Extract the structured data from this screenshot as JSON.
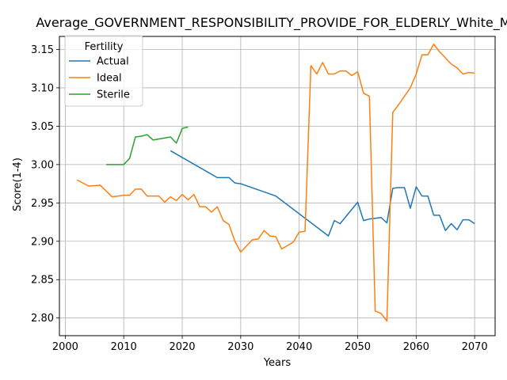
{
  "chart_data": {
    "type": "line",
    "title": "Average_GOVERNMENT_RESPONSIBILITY_PROVIDE_FOR_ELDERLY_White_Male",
    "xlabel": "Years",
    "ylabel": "Score(1-4)",
    "xlim": [
      1999,
      2073.5
    ],
    "ylim": [
      2.777,
      3.167
    ],
    "xticks": [
      2000,
      2010,
      2020,
      2030,
      2040,
      2050,
      2060,
      2070
    ],
    "yticks": [
      2.8,
      2.85,
      2.9,
      2.95,
      3.0,
      3.05,
      3.1,
      3.15
    ],
    "ytick_labels": [
      "2.80",
      "2.85",
      "2.90",
      "2.95",
      "3.00",
      "3.05",
      "3.10",
      "3.15"
    ],
    "grid": true,
    "legend": {
      "title": "Fertility",
      "position": "top-left"
    },
    "series": [
      {
        "name": "Actual",
        "color": "#1f77b4",
        "points": [
          [
            2018,
            3.018
          ],
          [
            2026,
            2.983
          ],
          [
            2028,
            2.983
          ],
          [
            2029,
            2.976
          ],
          [
            2030,
            2.975
          ],
          [
            2036,
            2.959
          ],
          [
            2045,
            2.907
          ],
          [
            2046,
            2.927
          ],
          [
            2047,
            2.923
          ],
          [
            2050,
            2.951
          ],
          [
            2051,
            2.927
          ],
          [
            2052,
            2.929
          ],
          [
            2053,
            2.93
          ],
          [
            2054,
            2.931
          ],
          [
            2055,
            2.924
          ],
          [
            2056,
            2.969
          ],
          [
            2057,
            2.97
          ],
          [
            2058,
            2.97
          ],
          [
            2059,
            2.943
          ],
          [
            2060,
            2.971
          ],
          [
            2061,
            2.959
          ],
          [
            2062,
            2.959
          ],
          [
            2063,
            2.934
          ],
          [
            2064,
            2.934
          ],
          [
            2065,
            2.914
          ],
          [
            2066,
            2.923
          ],
          [
            2067,
            2.915
          ],
          [
            2068,
            2.928
          ],
          [
            2069,
            2.928
          ],
          [
            2070,
            2.923
          ]
        ]
      },
      {
        "name": "Ideal",
        "color": "#ff7f0e",
        "points": [
          [
            2002,
            2.98
          ],
          [
            2004,
            2.972
          ],
          [
            2006,
            2.973
          ],
          [
            2008,
            2.958
          ],
          [
            2009,
            2.959
          ],
          [
            2010,
            2.96
          ],
          [
            2011,
            2.96
          ],
          [
            2012,
            2.968
          ],
          [
            2013,
            2.968
          ],
          [
            2014,
            2.959
          ],
          [
            2016,
            2.959
          ],
          [
            2017,
            2.951
          ],
          [
            2018,
            2.958
          ],
          [
            2019,
            2.953
          ],
          [
            2020,
            2.961
          ],
          [
            2021,
            2.954
          ],
          [
            2022,
            2.961
          ],
          [
            2023,
            2.945
          ],
          [
            2024,
            2.945
          ],
          [
            2025,
            2.938
          ],
          [
            2026,
            2.945
          ],
          [
            2027,
            2.927
          ],
          [
            2028,
            2.922
          ],
          [
            2029,
            2.9
          ],
          [
            2030,
            2.886
          ],
          [
            2032,
            2.902
          ],
          [
            2033,
            2.903
          ],
          [
            2034,
            2.914
          ],
          [
            2035,
            2.907
          ],
          [
            2036,
            2.906
          ],
          [
            2037,
            2.89
          ],
          [
            2039,
            2.899
          ],
          [
            2040,
            2.912
          ],
          [
            2041,
            2.913
          ],
          [
            2042,
            3.129
          ],
          [
            2043,
            3.118
          ],
          [
            2044,
            3.133
          ],
          [
            2045,
            3.118
          ],
          [
            2046,
            3.118
          ],
          [
            2047,
            3.122
          ],
          [
            2048,
            3.122
          ],
          [
            2049,
            3.116
          ],
          [
            2050,
            3.121
          ],
          [
            2051,
            3.093
          ],
          [
            2052,
            3.089
          ],
          [
            2053,
            2.809
          ],
          [
            2054,
            2.806
          ],
          [
            2055,
            2.796
          ],
          [
            2056,
            3.068
          ],
          [
            2057,
            3.078
          ],
          [
            2059,
            3.1
          ],
          [
            2060,
            3.118
          ],
          [
            2061,
            3.143
          ],
          [
            2062,
            3.143
          ],
          [
            2063,
            3.157
          ],
          [
            2064,
            3.147
          ],
          [
            2066,
            3.131
          ],
          [
            2067,
            3.126
          ],
          [
            2068,
            3.118
          ],
          [
            2069,
            3.12
          ],
          [
            2070,
            3.119
          ]
        ]
      },
      {
        "name": "Sterile",
        "color": "#2ca02c",
        "points": [
          [
            2007,
            3.0
          ],
          [
            2010,
            3.0
          ],
          [
            2011,
            3.008
          ],
          [
            2012,
            3.036
          ],
          [
            2013,
            3.037
          ],
          [
            2014,
            3.039
          ],
          [
            2015,
            3.032
          ],
          [
            2018,
            3.036
          ],
          [
            2019,
            3.028
          ],
          [
            2020,
            3.047
          ],
          [
            2021,
            3.049
          ]
        ]
      }
    ]
  }
}
